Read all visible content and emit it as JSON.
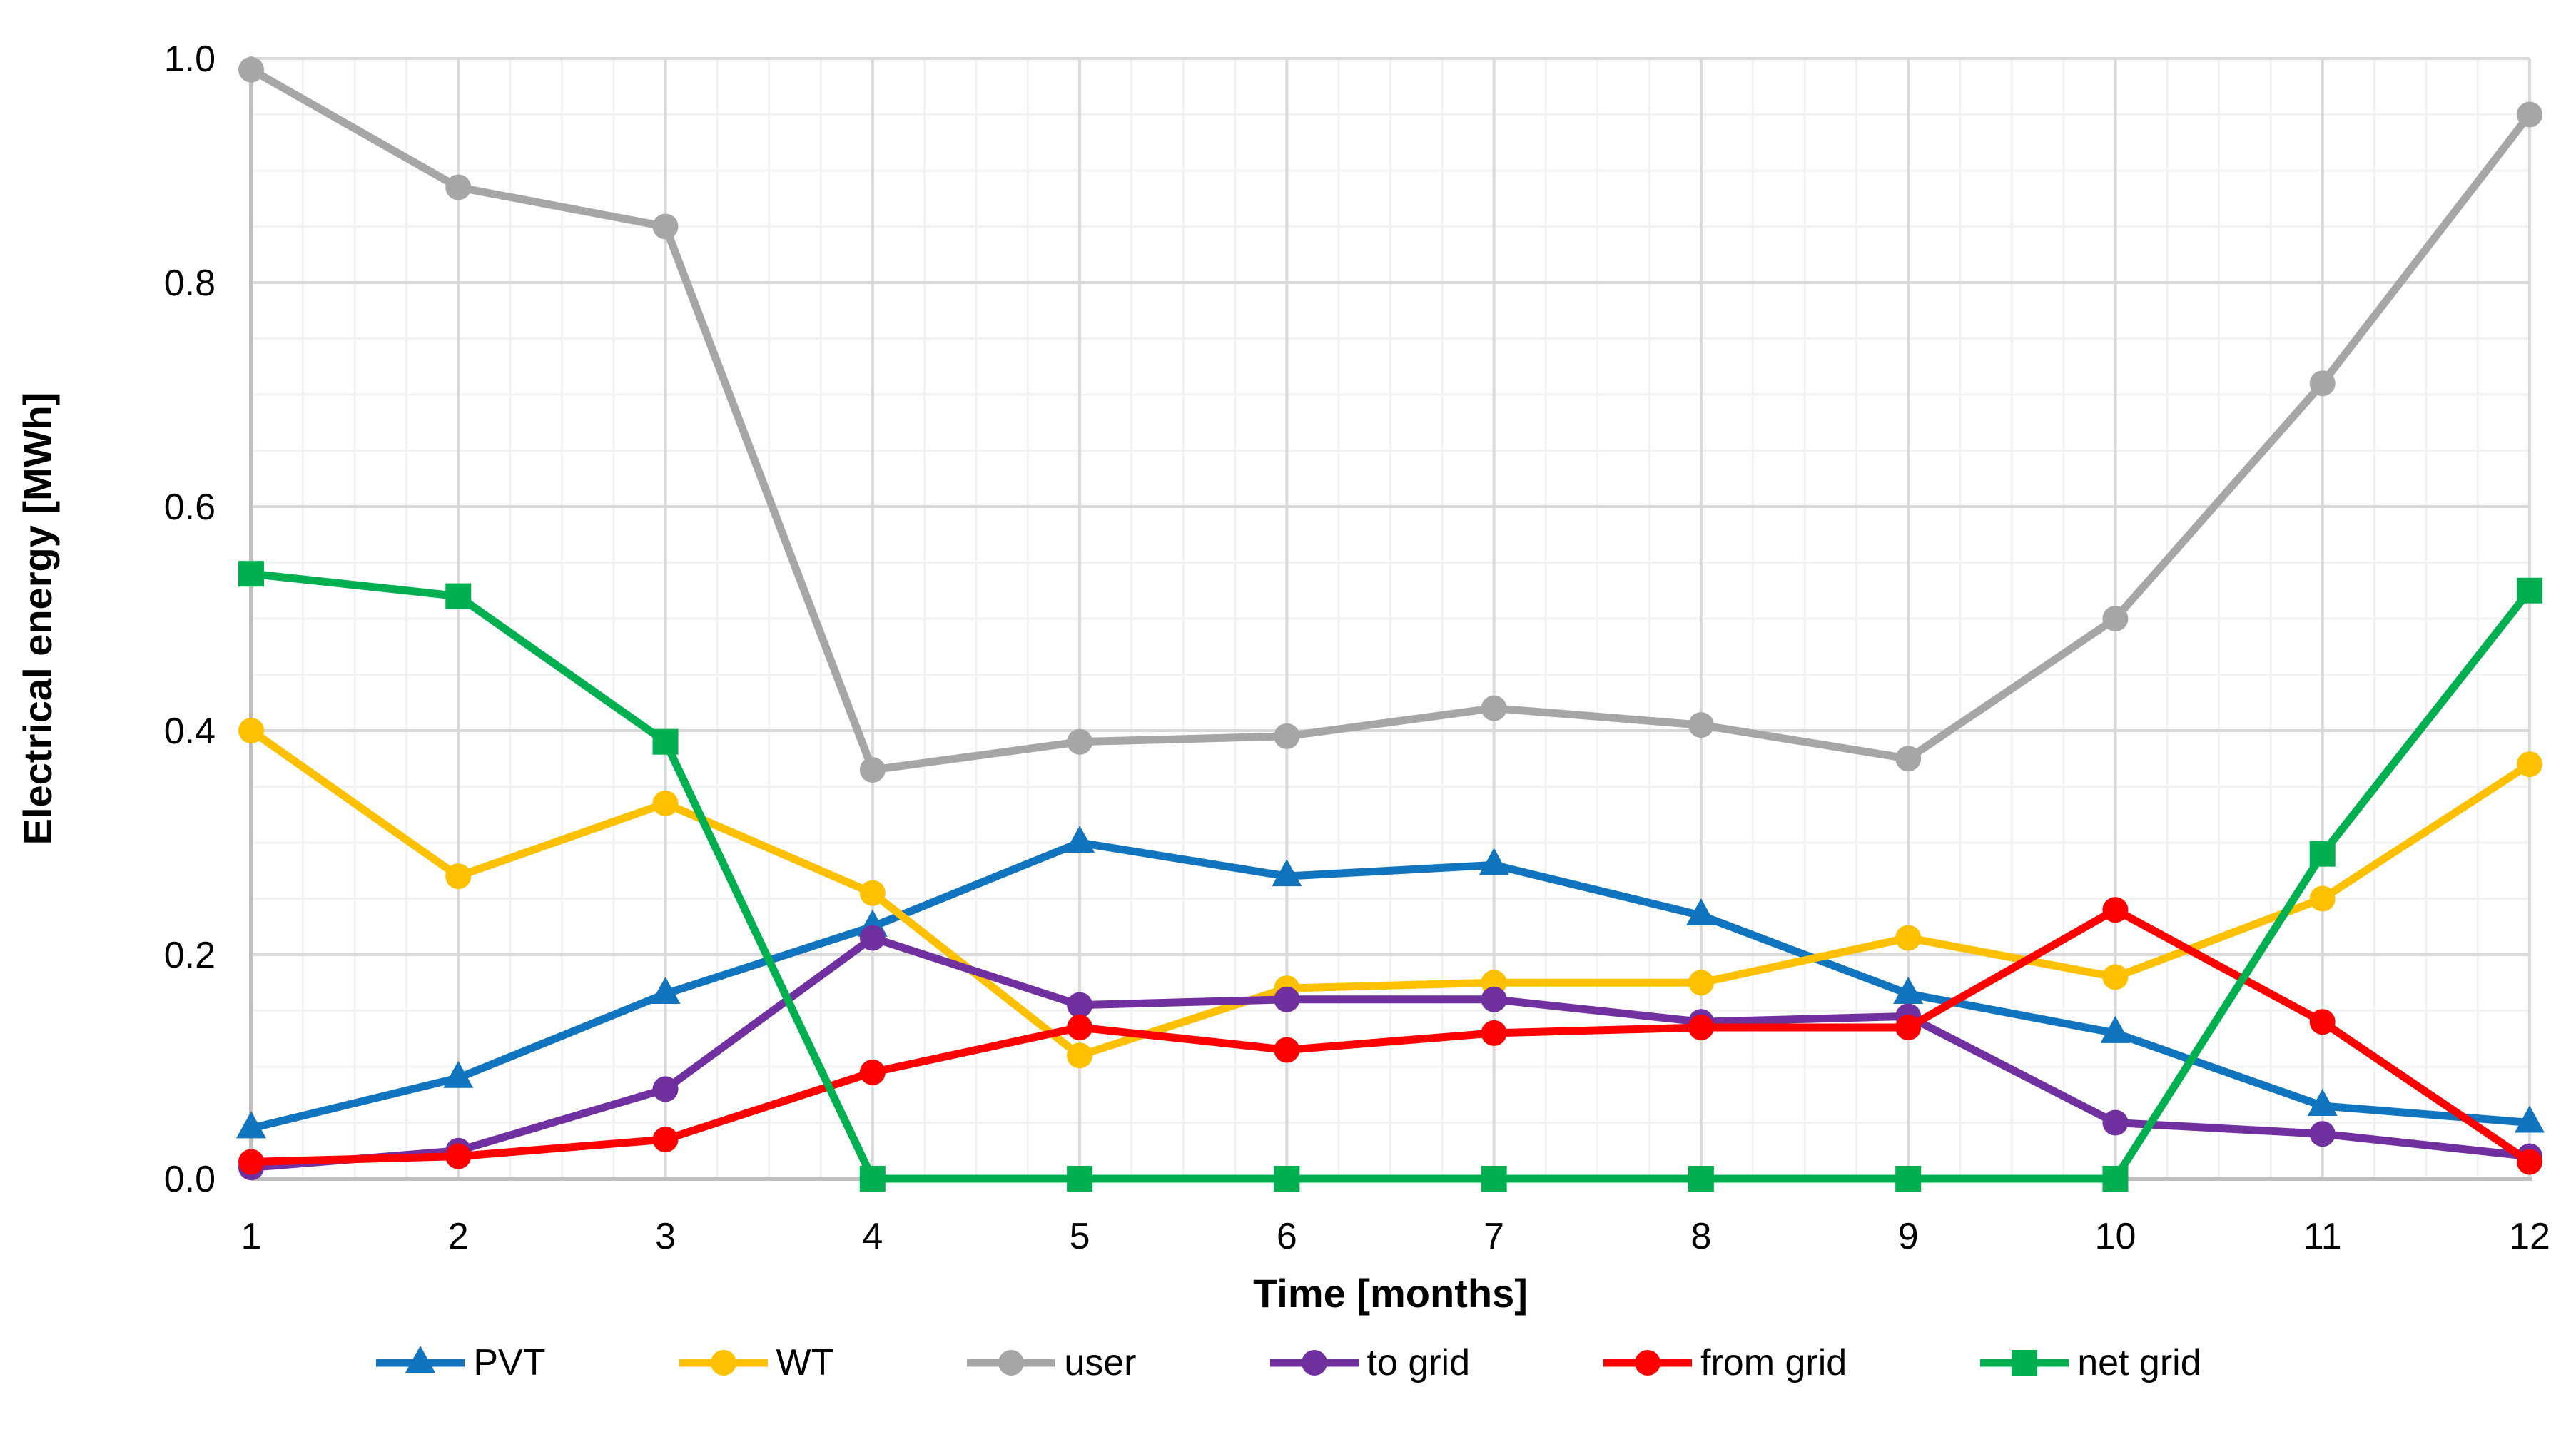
{
  "chart_data": {
    "type": "line",
    "title": "",
    "xlabel": "Time [months]",
    "ylabel": "Electrical energy [MWh]",
    "x": [
      1,
      2,
      3,
      4,
      5,
      6,
      7,
      8,
      9,
      10,
      11,
      12
    ],
    "x_ticks": [
      "1",
      "2",
      "3",
      "4",
      "5",
      "6",
      "7",
      "8",
      "9",
      "10",
      "11",
      "12"
    ],
    "y_ticks": [
      "0.0",
      "0.2",
      "0.4",
      "0.6",
      "0.8",
      "1.0"
    ],
    "xlim": [
      1,
      12
    ],
    "ylim": [
      0.0,
      1.0
    ],
    "y_major_step": 0.2,
    "y_minor_step": 0.05,
    "x_minor_step": 0.25,
    "grid": "major and minor gridlines on",
    "legend_position": "bottom",
    "series": [
      {
        "name": "PVT",
        "marker": "triangle",
        "color": "#1174BE",
        "values": [
          0.045,
          0.09,
          0.165,
          0.225,
          0.3,
          0.27,
          0.28,
          0.235,
          0.165,
          0.13,
          0.065,
          0.05
        ]
      },
      {
        "name": "WT",
        "marker": "circle",
        "color": "#FFC000",
        "values": [
          0.4,
          0.27,
          0.335,
          0.255,
          0.11,
          0.17,
          0.175,
          0.175,
          0.215,
          0.18,
          0.25,
          0.37
        ]
      },
      {
        "name": "user",
        "marker": "circle",
        "color": "#A6A6A6",
        "values": [
          0.99,
          0.885,
          0.85,
          0.365,
          0.39,
          0.395,
          0.42,
          0.405,
          0.375,
          0.5,
          0.71,
          0.95
        ]
      },
      {
        "name": "to grid",
        "marker": "circle",
        "color": "#7030A0",
        "values": [
          0.01,
          0.025,
          0.08,
          0.215,
          0.155,
          0.16,
          0.16,
          0.14,
          0.145,
          0.05,
          0.04,
          0.02
        ]
      },
      {
        "name": "from grid",
        "marker": "circle",
        "color": "#FF0000",
        "values": [
          0.015,
          0.02,
          0.035,
          0.095,
          0.135,
          0.115,
          0.13,
          0.135,
          0.135,
          0.24,
          0.14,
          0.015
        ]
      },
      {
        "name": "net grid",
        "marker": "square",
        "color": "#00B050",
        "values": [
          0.54,
          0.52,
          0.39,
          0.0,
          0.0,
          0.0,
          0.0,
          0.0,
          0.0,
          0.0,
          0.29,
          0.525
        ]
      }
    ]
  },
  "colors": {
    "background": "#FFFFFF",
    "axis_line": "#BFBFBF",
    "grid_major": "#D9D9D9",
    "grid_minor": "#F2F2F2",
    "text": "#000000"
  }
}
